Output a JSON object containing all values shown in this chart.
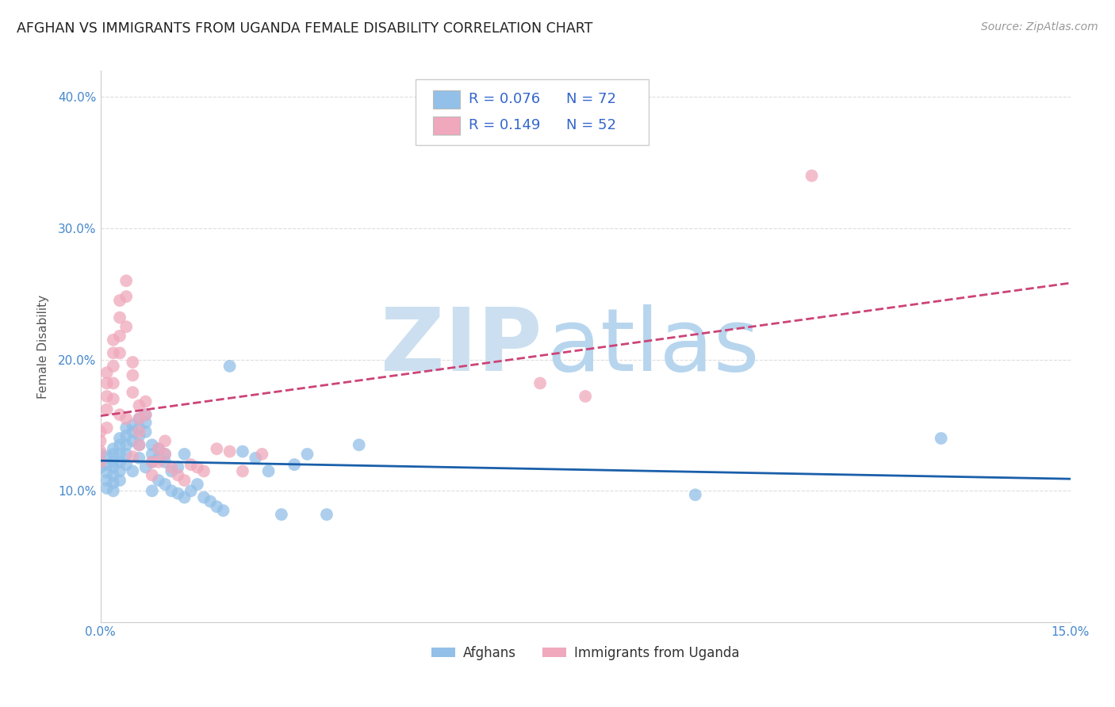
{
  "title": "AFGHAN VS IMMIGRANTS FROM UGANDA FEMALE DISABILITY CORRELATION CHART",
  "source": "Source: ZipAtlas.com",
  "ylabel_label": "Female Disability",
  "xlim": [
    0.0,
    0.15
  ],
  "ylim": [
    0.0,
    0.42
  ],
  "yticks": [
    0.1,
    0.2,
    0.3,
    0.4
  ],
  "ytick_labels": [
    "10.0%",
    "20.0%",
    "30.0%",
    "40.0%"
  ],
  "xticks": [
    0.0,
    0.15
  ],
  "xtick_labels": [
    "0.0%",
    "15.0%"
  ],
  "background_color": "#ffffff",
  "grid_color": "#dddddd",
  "watermark_zip": "ZIP",
  "watermark_atlas": "atlas",
  "watermark_color_zip": "#c5d8ef",
  "watermark_color_atlas": "#b8cfe8",
  "series": [
    {
      "name": "Afghans",
      "color": "#92c0e8",
      "R": 0.076,
      "N": 72,
      "line_style": "-",
      "line_color": "#1a5faa",
      "x": [
        0.0,
        0.0,
        0.0,
        0.001,
        0.001,
        0.001,
        0.001,
        0.001,
        0.002,
        0.002,
        0.002,
        0.002,
        0.002,
        0.002,
        0.002,
        0.003,
        0.003,
        0.003,
        0.003,
        0.003,
        0.003,
        0.004,
        0.004,
        0.004,
        0.004,
        0.004,
        0.005,
        0.005,
        0.005,
        0.005,
        0.006,
        0.006,
        0.006,
        0.006,
        0.006,
        0.007,
        0.007,
        0.007,
        0.007,
        0.008,
        0.008,
        0.008,
        0.008,
        0.009,
        0.009,
        0.009,
        0.01,
        0.01,
        0.01,
        0.011,
        0.011,
        0.012,
        0.012,
        0.013,
        0.013,
        0.014,
        0.015,
        0.016,
        0.017,
        0.018,
        0.019,
        0.02,
        0.022,
        0.024,
        0.026,
        0.028,
        0.03,
        0.032,
        0.035,
        0.04,
        0.092,
        0.13
      ],
      "y": [
        0.128,
        0.122,
        0.118,
        0.126,
        0.12,
        0.114,
        0.108,
        0.102,
        0.132,
        0.128,
        0.122,
        0.118,
        0.112,
        0.106,
        0.1,
        0.14,
        0.135,
        0.128,
        0.122,
        0.115,
        0.108,
        0.148,
        0.142,
        0.135,
        0.128,
        0.12,
        0.15,
        0.145,
        0.138,
        0.115,
        0.155,
        0.148,
        0.142,
        0.135,
        0.125,
        0.158,
        0.152,
        0.145,
        0.118,
        0.135,
        0.128,
        0.122,
        0.1,
        0.132,
        0.125,
        0.108,
        0.128,
        0.122,
        0.105,
        0.115,
        0.1,
        0.118,
        0.098,
        0.128,
        0.095,
        0.1,
        0.105,
        0.095,
        0.092,
        0.088,
        0.085,
        0.195,
        0.13,
        0.125,
        0.115,
        0.082,
        0.12,
        0.128,
        0.082,
        0.135,
        0.097,
        0.14
      ]
    },
    {
      "name": "Immigrants from Uganda",
      "color": "#f0a8bc",
      "R": 0.149,
      "N": 52,
      "line_style": "--",
      "line_color": "#cc4477",
      "x": [
        0.0,
        0.0,
        0.0,
        0.0,
        0.001,
        0.001,
        0.001,
        0.001,
        0.001,
        0.002,
        0.002,
        0.002,
        0.002,
        0.002,
        0.003,
        0.003,
        0.003,
        0.003,
        0.003,
        0.004,
        0.004,
        0.004,
        0.004,
        0.005,
        0.005,
        0.005,
        0.005,
        0.006,
        0.006,
        0.006,
        0.006,
        0.007,
        0.007,
        0.008,
        0.008,
        0.009,
        0.009,
        0.01,
        0.01,
        0.011,
        0.012,
        0.013,
        0.014,
        0.015,
        0.016,
        0.018,
        0.02,
        0.022,
        0.025,
        0.068,
        0.075,
        0.11
      ],
      "y": [
        0.145,
        0.138,
        0.13,
        0.122,
        0.19,
        0.182,
        0.172,
        0.162,
        0.148,
        0.215,
        0.205,
        0.195,
        0.182,
        0.17,
        0.245,
        0.232,
        0.218,
        0.205,
        0.158,
        0.26,
        0.248,
        0.225,
        0.155,
        0.198,
        0.188,
        0.175,
        0.126,
        0.165,
        0.155,
        0.145,
        0.135,
        0.168,
        0.158,
        0.122,
        0.112,
        0.132,
        0.122,
        0.138,
        0.128,
        0.118,
        0.112,
        0.108,
        0.12,
        0.118,
        0.115,
        0.132,
        0.13,
        0.115,
        0.128,
        0.182,
        0.172,
        0.34
      ]
    }
  ],
  "legend_entries": [
    {
      "label_r": "R = 0.076",
      "label_n": "N = 72",
      "color": "#92c0e8"
    },
    {
      "label_r": "R = 0.149",
      "label_n": "N = 52",
      "color": "#f0a8bc"
    }
  ],
  "bottom_legend": [
    {
      "label": "Afghans",
      "color": "#92c0e8"
    },
    {
      "label": "Immigrants from Uganda",
      "color": "#f0a8bc"
    }
  ]
}
